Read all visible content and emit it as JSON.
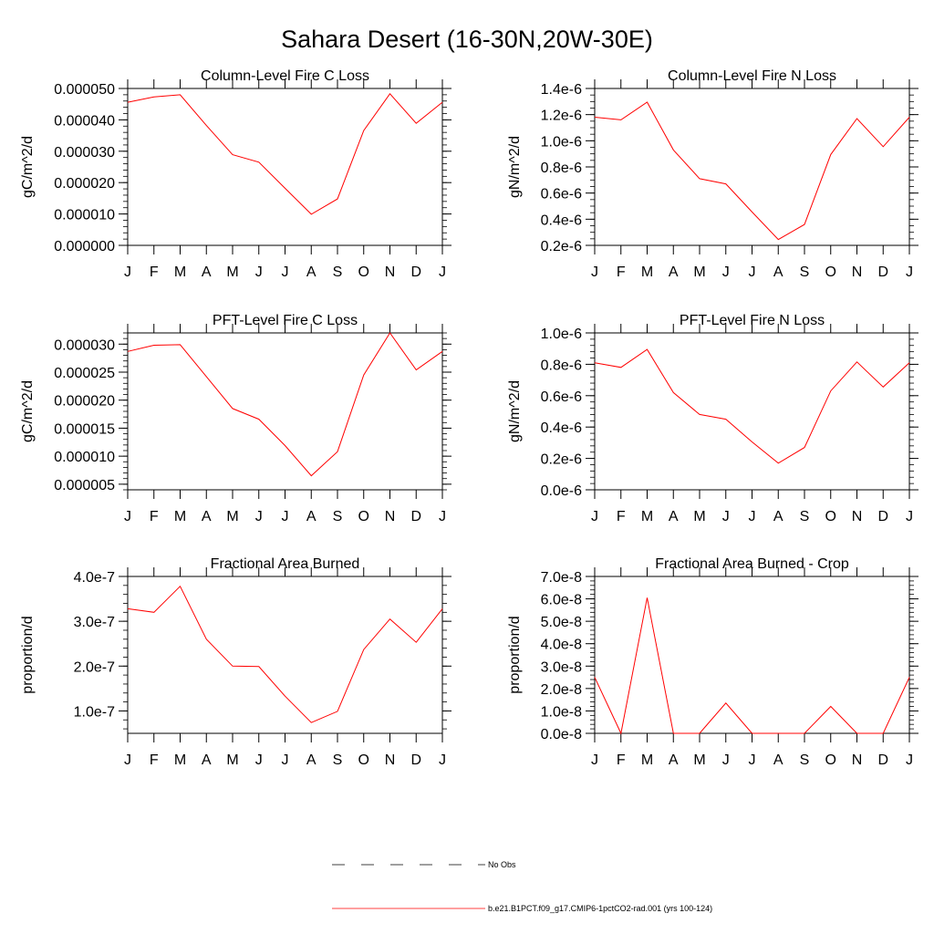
{
  "page": {
    "title": "Sahara Desert (16-30N,20W-30E)"
  },
  "legend": {
    "items": [
      {
        "label": "No Obs",
        "style": "dashed",
        "color": "#000000"
      },
      {
        "label": "b.e21.B1PCT.f09_g17.CMIP6-1pctCO2-rad.001 (yrs 100-124)",
        "style": "solid",
        "color": "#ff0000"
      }
    ]
  },
  "chart_data": [
    {
      "type": "line",
      "title": "Column-Level Fire C Loss",
      "ylabel": "gC/m^2/d",
      "categories": [
        "J",
        "F",
        "M",
        "A",
        "M",
        "J",
        "J",
        "A",
        "S",
        "O",
        "N",
        "D",
        "J"
      ],
      "ylim": [
        0,
        5e-05
      ],
      "yticks": [
        0,
        1e-05,
        2e-05,
        3e-05,
        4e-05,
        5e-05
      ],
      "ytick_labels": [
        "0.000000",
        "0.000010",
        "0.000020",
        "0.000030",
        "0.000040",
        "0.000050"
      ],
      "minor_step": 2e-06,
      "series": [
        {
          "color": "#ff0000",
          "values": [
            4.56e-05,
            4.73e-05,
            4.8e-05,
            3.82e-05,
            2.89e-05,
            2.65e-05,
            1.82e-05,
            9.9e-06,
            1.48e-05,
            3.66e-05,
            4.83e-05,
            3.89e-05,
            4.56e-05
          ]
        }
      ]
    },
    {
      "type": "line",
      "title": "Column-Level Fire N Loss",
      "ylabel": "gN/m^2/d",
      "categories": [
        "J",
        "F",
        "M",
        "A",
        "M",
        "J",
        "J",
        "A",
        "S",
        "O",
        "N",
        "D",
        "J"
      ],
      "ylim": [
        2e-07,
        1.4e-06
      ],
      "yticks": [
        2e-07,
        4e-07,
        6e-07,
        8e-07,
        1e-06,
        1.2e-06,
        1.4e-06
      ],
      "ytick_labels": [
        "0.2e-6",
        "0.4e-6",
        "0.6e-6",
        "0.8e-6",
        "1.0e-6",
        "1.2e-6",
        "1.4e-6"
      ],
      "minor_step": 5e-08,
      "series": [
        {
          "color": "#ff0000",
          "values": [
            1.18e-06,
            1.16e-06,
            1.295e-06,
            9.3e-07,
            7.1e-07,
            6.7e-07,
            4.55e-07,
            2.45e-07,
            3.6e-07,
            8.95e-07,
            1.17e-06,
            9.55e-07,
            1.18e-06
          ]
        }
      ]
    },
    {
      "type": "line",
      "title": "PFT-Level Fire C Loss",
      "ylabel": "gC/m^2/d",
      "categories": [
        "J",
        "F",
        "M",
        "A",
        "M",
        "J",
        "J",
        "A",
        "S",
        "O",
        "N",
        "D",
        "J"
      ],
      "ylim": [
        4e-06,
        3.2e-05
      ],
      "yticks": [
        5e-06,
        1e-05,
        1.5e-05,
        2e-05,
        2.5e-05,
        3e-05
      ],
      "ytick_labels": [
        "0.000005",
        "0.000010",
        "0.000015",
        "0.000020",
        "0.000025",
        "0.000030"
      ],
      "minor_step": 1e-06,
      "series": [
        {
          "color": "#ff0000",
          "values": [
            2.87e-05,
            2.98e-05,
            2.99e-05,
            2.42e-05,
            1.85e-05,
            1.66e-05,
            1.19e-05,
            6.5e-06,
            1.08e-05,
            2.45e-05,
            3.2e-05,
            2.54e-05,
            2.87e-05
          ]
        }
      ]
    },
    {
      "type": "line",
      "title": "PFT-Level Fire N Loss",
      "ylabel": "gN/m^2/d",
      "categories": [
        "J",
        "F",
        "M",
        "A",
        "M",
        "J",
        "J",
        "A",
        "S",
        "O",
        "N",
        "D",
        "J"
      ],
      "ylim": [
        0,
        1e-06
      ],
      "yticks": [
        0,
        2e-07,
        4e-07,
        6e-07,
        8e-07,
        1e-06
      ],
      "ytick_labels": [
        "0.0e-6",
        "0.2e-6",
        "0.4e-6",
        "0.6e-6",
        "0.8e-6",
        "1.0e-6"
      ],
      "minor_step": 4e-08,
      "series": [
        {
          "color": "#ff0000",
          "values": [
            8.1e-07,
            7.8e-07,
            8.95e-07,
            6.2e-07,
            4.8e-07,
            4.5e-07,
            3.05e-07,
            1.7e-07,
            2.7e-07,
            6.3e-07,
            8.15e-07,
            6.55e-07,
            8.1e-07
          ]
        }
      ]
    },
    {
      "type": "line",
      "title": "Fractional Area Burned",
      "ylabel": "proportion/d",
      "categories": [
        "J",
        "F",
        "M",
        "A",
        "M",
        "J",
        "J",
        "A",
        "S",
        "O",
        "N",
        "D",
        "J"
      ],
      "ylim": [
        5e-08,
        4e-07
      ],
      "yticks": [
        1e-07,
        2e-07,
        3e-07,
        4e-07
      ],
      "ytick_labels": [
        "1.0e-7",
        "2.0e-7",
        "3.0e-7",
        "4.0e-7"
      ],
      "minor_step": 2e-08,
      "series": [
        {
          "color": "#ff0000",
          "values": [
            3.28e-07,
            3.2e-07,
            3.78e-07,
            2.6e-07,
            2e-07,
            1.99e-07,
            1.33e-07,
            7.4e-08,
            9.9e-08,
            2.37e-07,
            3.05e-07,
            2.53e-07,
            3.28e-07
          ]
        }
      ]
    },
    {
      "type": "line",
      "title": "Fractional Area Burned - Crop",
      "ylabel": "proportion/d",
      "categories": [
        "J",
        "F",
        "M",
        "A",
        "M",
        "J",
        "J",
        "A",
        "S",
        "O",
        "N",
        "D",
        "J"
      ],
      "ylim": [
        0,
        7e-08
      ],
      "yticks": [
        0,
        1e-08,
        2e-08,
        3e-08,
        4e-08,
        5e-08,
        6e-08,
        7e-08
      ],
      "ytick_labels": [
        "0.0e-8",
        "1.0e-8",
        "2.0e-8",
        "3.0e-8",
        "4.0e-8",
        "5.0e-8",
        "6.0e-8",
        "7.0e-8"
      ],
      "minor_step": 2e-09,
      "series": [
        {
          "color": "#ff0000",
          "values": [
            2.5e-08,
            0,
            6.05e-08,
            0,
            0,
            1.35e-08,
            0,
            0,
            0,
            1.2e-08,
            0,
            0,
            2.5e-08
          ]
        }
      ]
    }
  ]
}
